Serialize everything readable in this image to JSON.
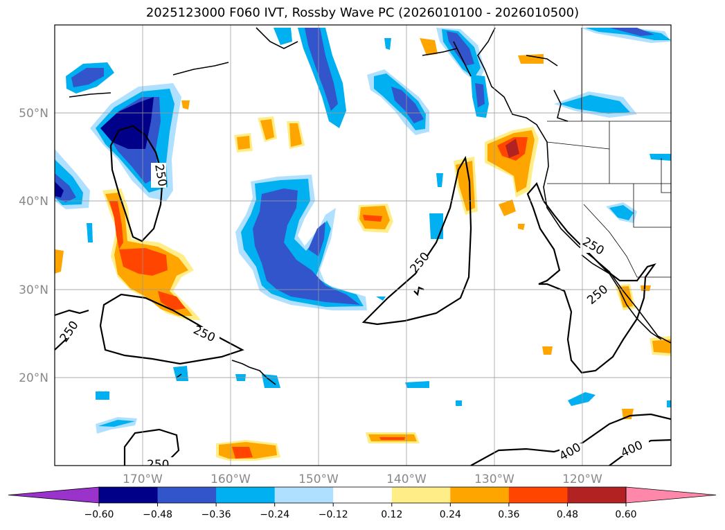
{
  "title": "2025123000 F060 IVT, Rossby Wave PC (2026010100 - 2026010500)",
  "lat_labels": [
    "50°N",
    "40°N",
    "30°N",
    "20°N"
  ],
  "lon_labels": [
    "170°W",
    "160°W",
    "150°W",
    "140°W",
    "130°W",
    "120°W"
  ],
  "colorbar": {
    "ticks": [
      "−0.60",
      "−0.48",
      "−0.36",
      "−0.24",
      "−0.12",
      "0.12",
      "0.24",
      "0.36",
      "0.48",
      "0.60"
    ],
    "colors": [
      "#9933cc",
      "#000088",
      "#3355cc",
      "#00b0f0",
      "#b0e0ff",
      "#ffffff",
      "#ffee88",
      "#ffa500",
      "#ff4500",
      "#b22222",
      "#ff88aa"
    ]
  },
  "contour_labels": [
    "250",
    "250",
    "250",
    "250",
    "250",
    "250",
    "400",
    "400",
    "250"
  ]
}
